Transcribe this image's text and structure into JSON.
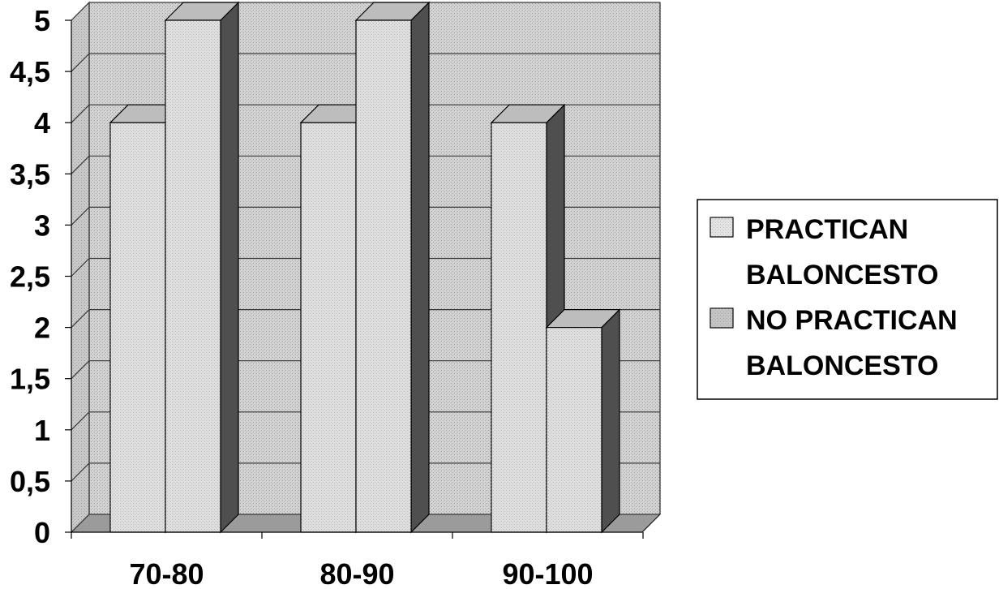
{
  "chart_data": {
    "type": "bar",
    "categories": [
      "70-80",
      "80-90",
      "90-100"
    ],
    "series": [
      {
        "name": "PRACTICAN BALONCESTO",
        "values": [
          4,
          4,
          4
        ]
      },
      {
        "name": "NO PRACTICAN BALONCESTO",
        "values": [
          5,
          5,
          2
        ]
      }
    ],
    "yticks": [
      "0",
      "0,5",
      "1",
      "1,5",
      "2",
      "2,5",
      "3",
      "3,5",
      "4",
      "4,5",
      "5"
    ],
    "ylim": [
      0,
      5
    ],
    "grid": true,
    "legend_position": "right",
    "legend": [
      {
        "lines": [
          "PRACTICAN",
          "BALONCESTO"
        ]
      },
      {
        "lines": [
          "NO PRACTICAN",
          "BALONCESTO"
        ]
      }
    ],
    "colors": {
      "front": "#dedede",
      "top": "#bdbdbd",
      "side": "#4f4f4f",
      "wall": "#d2d2d2",
      "grid": "#3a3a3a",
      "legend_swatch_1": "#e4e4e4",
      "legend_swatch_2": "#c4c4c4"
    },
    "style": "3d-clustered-columns"
  }
}
